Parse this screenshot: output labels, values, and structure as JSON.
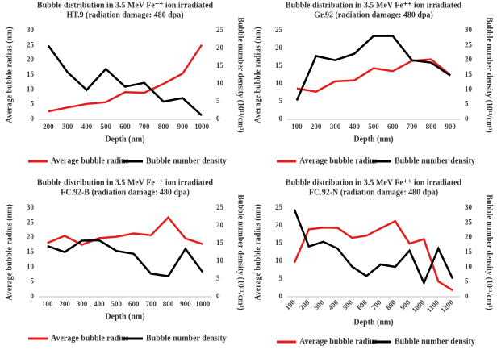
{
  "chart_data": [
    {
      "type": "line",
      "title": [
        "Bubble distribution in 3.5 MeV Fe⁺⁺ ion irradiated",
        "HT.9 (radiation damage: 480 dpa)"
      ],
      "xlabel": "Depth (nm)",
      "ylabel": "Average bubble radius (nm)",
      "y2label": "Bubble number density (10¹¹/cm³)",
      "categories": [
        "200",
        "300",
        "400",
        "500",
        "600",
        "700",
        "800",
        "900",
        "1000"
      ],
      "ylim": [
        0,
        30
      ],
      "yticks": [
        0,
        5,
        10,
        15,
        20,
        25,
        30
      ],
      "y2lim": [
        0,
        25
      ],
      "y2ticks": [
        0,
        5,
        10,
        15,
        20,
        25
      ],
      "series": [
        {
          "name": "Average bubble radius",
          "color": "#e41e1e",
          "values": [
            2.7,
            4,
            5.2,
            5.8,
            9.2,
            9,
            12,
            15.5,
            25.2
          ]
        },
        {
          "name": "Bubble number density",
          "color": "#000000",
          "axis": "y2",
          "values": [
            20.8,
            13.3,
            8.3,
            14.2,
            9.2,
            10.3,
            5,
            6,
            1.1
          ]
        }
      ]
    },
    {
      "type": "line",
      "title": [
        "Bubble distribution in 3.5 MeV Fe⁺⁺ ion irradiated",
        "Gr.92 (radiation damage: 480 dpa)"
      ],
      "xlabel": "Depth (nm)",
      "ylabel": "Average bubble radius (nm)",
      "y2label": "Bubble number density (10¹¹/cm³)",
      "categories": [
        "100",
        "200",
        "300",
        "400",
        "500",
        "600",
        "700",
        "800",
        "900"
      ],
      "ylim": [
        0,
        25
      ],
      "yticks": [
        0,
        5,
        10,
        15,
        20,
        25
      ],
      "y2lim": [
        0,
        30
      ],
      "y2ticks": [
        0,
        5,
        10,
        15,
        20,
        25,
        30
      ],
      "series": [
        {
          "name": "Average bubble radius",
          "color": "#e41e1e",
          "values": [
            8.7,
            7.8,
            10.7,
            11,
            14.4,
            13.6,
            16.5,
            16.9,
            12.5
          ]
        },
        {
          "name": "Bubble number density",
          "color": "#000000",
          "axis": "y2",
          "values": [
            6.4,
            21.4,
            20,
            22.2,
            28.2,
            28.2,
            20,
            19.2,
            14.8
          ]
        }
      ]
    },
    {
      "type": "line",
      "title": [
        "Bubble distribution in 3.5 MeV Fe⁺⁺ ion irradiated",
        "FC.92-B (radiation damage: 480 dpa)"
      ],
      "xlabel": "Depth (nm)",
      "ylabel": "Average bubble radius (nm)",
      "y2label": "Bubble number density (10¹¹/cm³)",
      "categories": [
        "100",
        "200",
        "300",
        "400",
        "500",
        "600",
        "700",
        "800",
        "900",
        "1000"
      ],
      "ylim": [
        0,
        30
      ],
      "yticks": [
        0,
        5,
        10,
        15,
        20,
        25,
        30
      ],
      "y2lim": [
        0,
        25
      ],
      "y2ticks": [
        0,
        5,
        10,
        15,
        20,
        25
      ],
      "series": [
        {
          "name": "Average bubble radius",
          "color": "#e41e1e",
          "values": [
            18.2,
            20.6,
            17.6,
            19.8,
            20.3,
            21.4,
            20.8,
            26.8,
            19.7,
            17.8
          ]
        },
        {
          "name": "Bubble number density",
          "color": "#000000",
          "axis": "y2",
          "values": [
            14.3,
            12.6,
            15.8,
            15.9,
            12.9,
            12.1,
            6.5,
            5.8,
            13.5,
            6.9
          ]
        }
      ]
    },
    {
      "type": "line",
      "title": [
        "Bubble distribution in 3.5 MeV Fe⁺⁺ ion irradiated",
        "FC.92-N (radiation damage: 480 dpa)"
      ],
      "xlabel": "Depth (nm)",
      "ylabel": "Average bubble radius (nm)",
      "y2label": "Bubble number density (10¹¹/cm³)",
      "categories": [
        "100",
        "200",
        "300",
        "400",
        "500",
        "600",
        "700",
        "800",
        "900",
        "1000",
        "1100",
        "1200"
      ],
      "ylim": [
        0,
        25
      ],
      "yticks": [
        0,
        5,
        10,
        15,
        20,
        25
      ],
      "y2lim": [
        0,
        30
      ],
      "y2ticks": [
        0,
        5,
        10,
        15,
        20,
        25,
        30
      ],
      "series": [
        {
          "name": "Average bubble radius",
          "color": "#e41e1e",
          "values": [
            9.6,
            19,
            19.5,
            19.4,
            16.6,
            17.2,
            19.3,
            21.3,
            15,
            16.2,
            4.3,
            1.8
          ]
        },
        {
          "name": "Bubble number density",
          "color": "#000000",
          "axis": "y2",
          "values": [
            29.5,
            17,
            18.6,
            16.3,
            10.2,
            7,
            10.9,
            10.1,
            15.6,
            4.7,
            16.3,
            6.1
          ]
        }
      ]
    }
  ]
}
